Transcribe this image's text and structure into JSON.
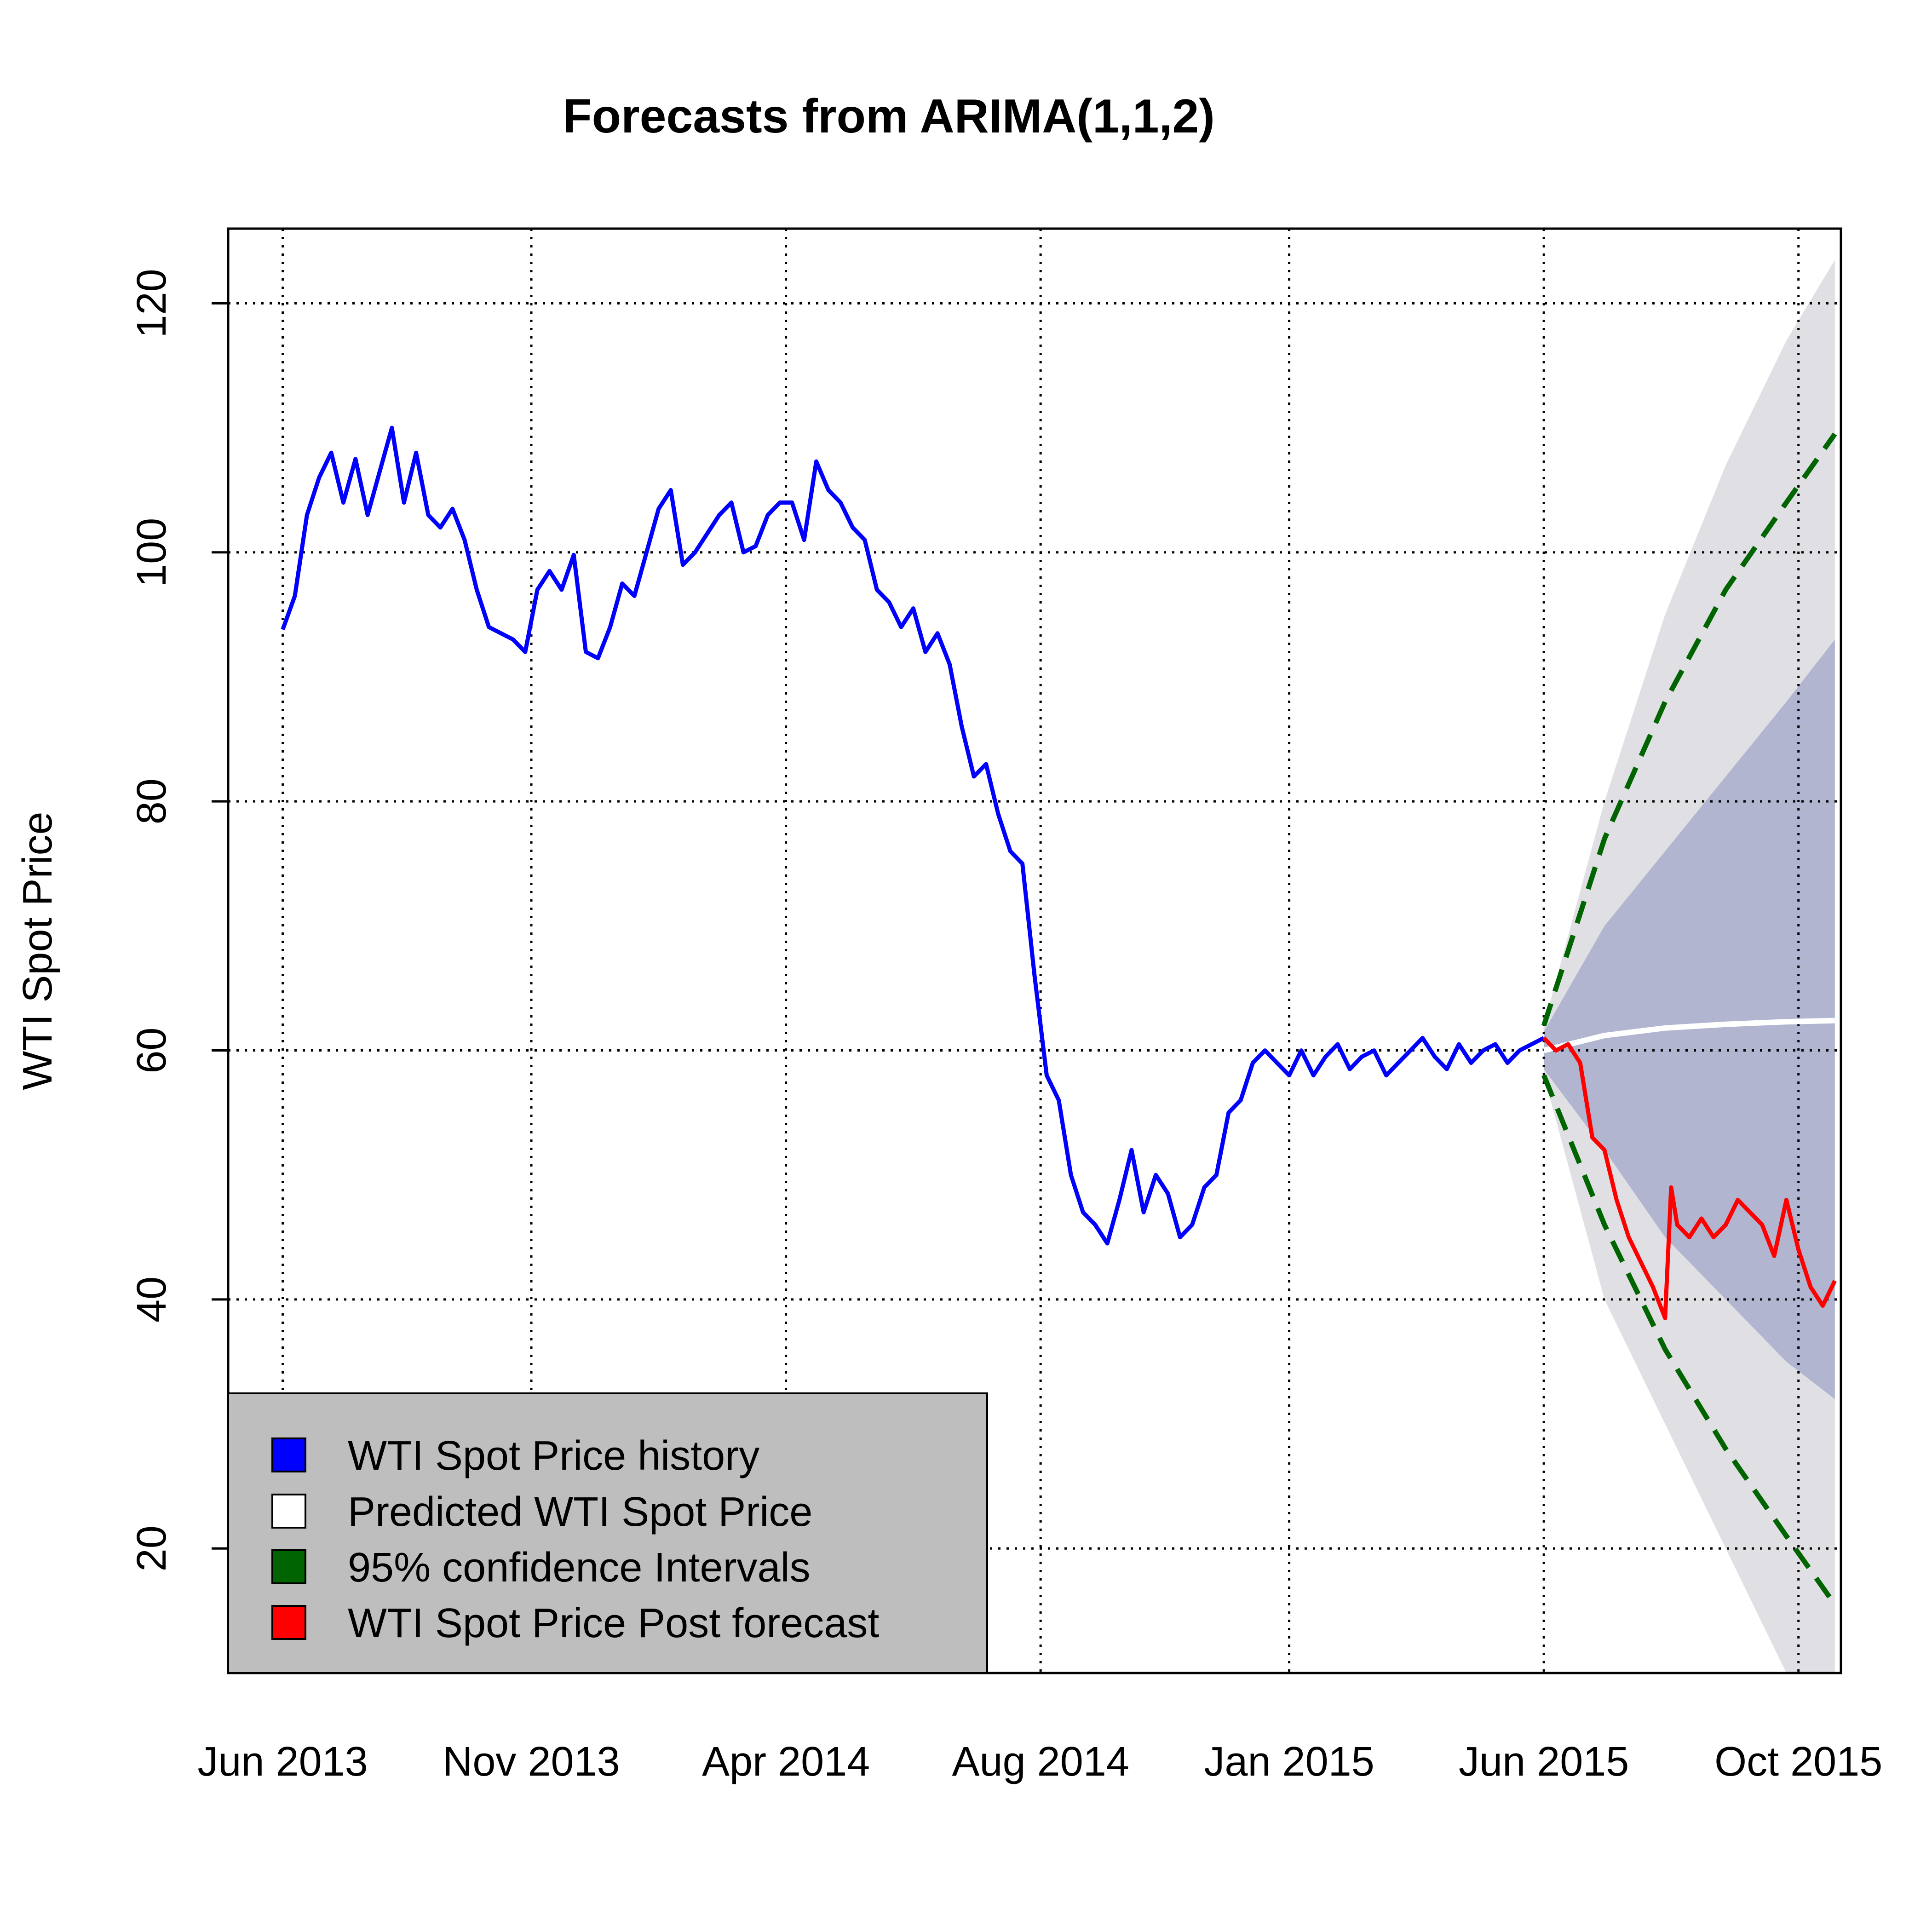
{
  "chart_data": {
    "type": "line",
    "title": "Forecasts from ARIMA(1,1,2)",
    "xlabel": "",
    "ylabel": "WTI Spot Price",
    "xlim": [
      2013.33,
      2015.99
    ],
    "ylim": [
      10,
      126
    ],
    "grid": true,
    "x_ticks": [
      {
        "label": "Jun 2013",
        "t": 2013.42
      },
      {
        "label": "Nov 2013",
        "t": 2013.83
      },
      {
        "label": "Apr 2014",
        "t": 2014.25
      },
      {
        "label": "Aug 2014",
        "t": 2014.67
      },
      {
        "label": "Jan 2015",
        "t": 2015.08
      },
      {
        "label": "Jun 2015",
        "t": 2015.5
      },
      {
        "label": "Oct 2015",
        "t": 2015.92
      }
    ],
    "y_ticks": [
      20,
      40,
      60,
      80,
      100,
      120
    ],
    "legend": {
      "position": "bottom-left",
      "entries": [
        {
          "label": "WTI Spot Price  history",
          "color": "#0000ff"
        },
        {
          "label": "Predicted  WTI Spot Price",
          "color": "#ffffff"
        },
        {
          "label": "95% confidence Intervals",
          "color": "#006400"
        },
        {
          "label": "WTI Spot Price  Post forecast",
          "color": "#ff0000"
        }
      ]
    },
    "colors": {
      "history": "#0000ff",
      "predicted": "#ffffff",
      "ci95": "#006400",
      "post_forecast": "#ff0000",
      "band80": "#b1b5d0",
      "band95": "#e0e0e4",
      "legend_bg": "#bebebe"
    },
    "series": [
      {
        "name": "WTI Spot Price  history",
        "x": [
          2013.42,
          2013.44,
          2013.46,
          2013.48,
          2013.5,
          2013.52,
          2013.54,
          2013.56,
          2013.58,
          2013.6,
          2013.62,
          2013.64,
          2013.66,
          2013.68,
          2013.7,
          2013.72,
          2013.74,
          2013.76,
          2013.78,
          2013.8,
          2013.82,
          2013.84,
          2013.86,
          2013.88,
          2013.9,
          2013.92,
          2013.94,
          2013.96,
          2013.98,
          2014.0,
          2014.02,
          2014.04,
          2014.06,
          2014.08,
          2014.1,
          2014.12,
          2014.14,
          2014.16,
          2014.18,
          2014.2,
          2014.22,
          2014.24,
          2014.26,
          2014.28,
          2014.3,
          2014.32,
          2014.34,
          2014.36,
          2014.38,
          2014.4,
          2014.42,
          2014.44,
          2014.46,
          2014.48,
          2014.5,
          2014.52,
          2014.54,
          2014.56,
          2014.58,
          2014.6,
          2014.62,
          2014.64,
          2014.66,
          2014.68,
          2014.7,
          2014.72,
          2014.74,
          2014.76,
          2014.78,
          2014.8,
          2014.82,
          2014.84,
          2014.86,
          2014.88,
          2014.9,
          2014.92,
          2014.94,
          2014.96,
          2014.98,
          2015.0,
          2015.02,
          2015.04,
          2015.06,
          2015.08,
          2015.1,
          2015.12,
          2015.14,
          2015.16,
          2015.18,
          2015.2,
          2015.22,
          2015.24,
          2015.26,
          2015.28,
          2015.3,
          2015.32,
          2015.34,
          2015.36,
          2015.38,
          2015.4,
          2015.42,
          2015.44,
          2015.46,
          2015.48,
          2015.5
        ],
        "y": [
          93.8,
          96.5,
          103,
          106,
          108,
          104,
          107.5,
          103,
          106.5,
          110,
          104,
          108,
          103,
          102,
          103.5,
          101,
          97,
          94,
          93.5,
          93,
          92,
          97,
          98.5,
          97,
          99.8,
          92,
          91.5,
          94,
          97.5,
          96.5,
          100,
          103.5,
          105,
          99,
          100,
          101.5,
          103,
          104,
          100,
          100.5,
          103,
          104,
          104,
          101,
          107.3,
          105,
          104,
          102,
          101,
          97,
          96,
          94,
          95.5,
          92,
          93.5,
          91,
          86,
          82,
          83,
          79,
          76,
          75,
          66,
          58,
          56,
          50,
          47,
          46,
          44.5,
          48,
          52,
          47,
          50,
          48.5,
          45,
          46,
          49,
          50,
          55,
          56,
          59,
          60,
          59,
          58,
          60,
          58,
          59.5,
          60.5,
          58.5,
          59.5,
          60,
          58,
          59,
          60,
          61,
          59.5,
          58.5,
          60.5,
          59,
          60,
          60.5,
          59,
          60,
          60.5,
          61
        ]
      },
      {
        "name": "WTI Spot Price  Post forecast",
        "x": [
          2015.5,
          2015.52,
          2015.54,
          2015.56,
          2015.58,
          2015.6,
          2015.62,
          2015.64,
          2015.66,
          2015.68,
          2015.7,
          2015.71,
          2015.72,
          2015.74,
          2015.76,
          2015.78,
          2015.8,
          2015.82,
          2015.84,
          2015.86,
          2015.88,
          2015.9,
          2015.92,
          2015.94,
          2015.96,
          2015.98
        ],
        "y": [
          61,
          60,
          60.5,
          59,
          53,
          52,
          48,
          45,
          43,
          41,
          38.5,
          49,
          46,
          45,
          46.5,
          45,
          46,
          48,
          47,
          46,
          43.5,
          48,
          44,
          41,
          39.5,
          41.5
        ]
      },
      {
        "name": "Predicted  WTI Spot Price",
        "x": [
          2015.5,
          2015.6,
          2015.7,
          2015.8,
          2015.9,
          2015.98
        ],
        "y": [
          60,
          61.2,
          61.8,
          62.1,
          62.3,
          62.4
        ]
      },
      {
        "name": "95% confidence Intervals (upper)",
        "x": [
          2015.5,
          2015.6,
          2015.7,
          2015.8,
          2015.9,
          2015.98
        ],
        "y": [
          62,
          77,
          88,
          97,
          104,
          109.5
        ]
      },
      {
        "name": "95% confidence Intervals (lower)",
        "x": [
          2015.5,
          2015.6,
          2015.7,
          2015.8,
          2015.9,
          2015.98
        ],
        "y": [
          58,
          46,
          36,
          28,
          21,
          15.5
        ]
      },
      {
        "name": "80% band (upper)",
        "x": [
          2015.5,
          2015.6,
          2015.7,
          2015.8,
          2015.9,
          2015.98
        ],
        "y": [
          61.5,
          70,
          76,
          82,
          88,
          93
        ]
      },
      {
        "name": "80% band (lower)",
        "x": [
          2015.5,
          2015.6,
          2015.7,
          2015.8,
          2015.9,
          2015.98
        ],
        "y": [
          58.5,
          52,
          45,
          40,
          35,
          32
        ]
      },
      {
        "name": "95% band (upper)",
        "x": [
          2015.5,
          2015.6,
          2015.7,
          2015.8,
          2015.9,
          2015.98
        ],
        "y": [
          62,
          80,
          95,
          107,
          117,
          123.5
        ]
      },
      {
        "name": "95% band (lower)",
        "x": [
          2015.5,
          2015.6,
          2015.7,
          2015.8,
          2015.9,
          2015.98
        ],
        "y": [
          58,
          40,
          30,
          20,
          10,
          10
        ]
      }
    ]
  }
}
